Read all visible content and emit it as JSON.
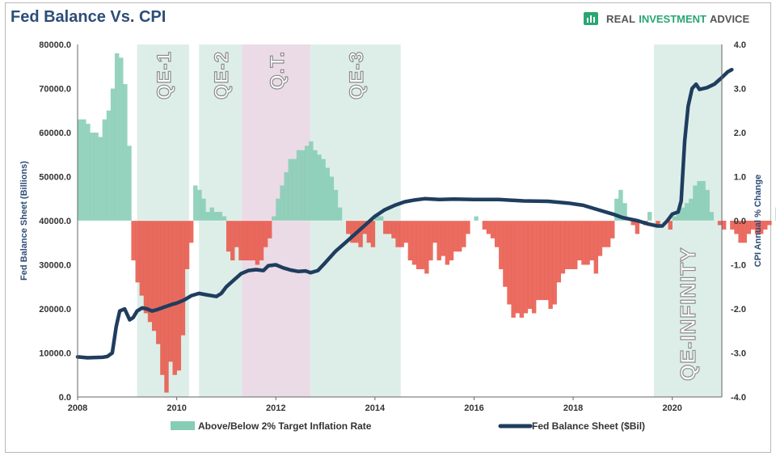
{
  "header": {
    "title": "Fed Balance Vs. CPI",
    "brand_part1": "REAL",
    "brand_part2": "INVESTMENT",
    "brand_part3": "ADVICE",
    "brand_icon": "bar-chart-icon"
  },
  "colors": {
    "title": "#2d4d78",
    "above": "#86cdb5",
    "below": "#e8584a",
    "line": "#1f3d5e",
    "qe_shade": "#d7ebe4",
    "qt_shade": "#e7d5e2",
    "axis_text": "#333333",
    "ylabel_text": "#2d4d78"
  },
  "chart_data": {
    "type": "bar+line",
    "title": "Fed Balance Vs. CPI",
    "x_ticks": [
      "2008",
      "2010",
      "2012",
      "2014",
      "2016",
      "2018",
      "2020"
    ],
    "xlim": [
      2008.0,
      2021.0
    ],
    "left_axis": {
      "label": "Fed Balance Sheet (Billions)",
      "ylim": [
        0,
        80000
      ],
      "ticks": [
        "0.0",
        "10000.0",
        "20000.0",
        "30000.0",
        "40000.0",
        "50000.0",
        "60000.0",
        "70000.0",
        "80000.0"
      ]
    },
    "right_axis": {
      "label": "CPI Annual % Change",
      "ylim": [
        -4.0,
        4.0
      ],
      "ticks": [
        "-4.0",
        "-3.0",
        "-2.0",
        "-1.0",
        "0.0",
        "1.0",
        "2.0",
        "3.0",
        "4.0"
      ]
    },
    "periods": [
      {
        "label": "QE-1",
        "start": 2009.2,
        "end": 2010.25,
        "kind": "qe"
      },
      {
        "label": "QE-2",
        "start": 2010.45,
        "end": 2011.32,
        "kind": "qe"
      },
      {
        "label": "Q.T.",
        "start": 2011.32,
        "end": 2012.7,
        "kind": "qt"
      },
      {
        "label": "QE-3",
        "start": 2012.7,
        "end": 2014.52,
        "kind": "qe"
      },
      {
        "label": "QE-INFINITY",
        "start": 2019.63,
        "end": 2021.0,
        "kind": "qe"
      }
    ],
    "bar_series": {
      "name": "Above/Below 2% Target Inflation Rate",
      "start": 2008.0,
      "step": 0.08333,
      "values": [
        2.3,
        2.3,
        2.2,
        2.0,
        2.0,
        1.9,
        2.3,
        2.5,
        3.0,
        3.8,
        3.7,
        3.1,
        1.7,
        -0.9,
        -1.4,
        -1.7,
        -2.1,
        -2.3,
        -2.5,
        -2.8,
        -3.5,
        -3.9,
        -3.2,
        -3.5,
        -3.4,
        -2.6,
        -1.1,
        -0.5,
        0.8,
        0.7,
        0.5,
        0.2,
        0.3,
        0.2,
        0.2,
        0.1,
        -0.7,
        -0.9,
        -0.6,
        -0.9,
        -0.9,
        -0.9,
        -0.9,
        -1.0,
        -0.9,
        -0.6,
        -0.4,
        0.1,
        0.5,
        0.8,
        1.1,
        1.4,
        1.4,
        1.6,
        1.6,
        1.7,
        1.8,
        1.6,
        1.5,
        1.4,
        1.2,
        1.0,
        0.7,
        0.3,
        0.0,
        -0.3,
        -0.5,
        -0.5,
        -0.6,
        -0.3,
        -0.5,
        -0.6,
        0.1,
        0.1,
        -0.3,
        -0.3,
        -0.4,
        -0.6,
        -0.6,
        -0.5,
        -0.9,
        -1.0,
        -1.1,
        -1.1,
        -1.2,
        -0.9,
        -0.5,
        -0.9,
        -0.8,
        -1.0,
        -0.9,
        -0.7,
        -0.7,
        -0.6,
        -0.3,
        0.0,
        0.1,
        0.0,
        -0.2,
        -0.3,
        -0.4,
        -0.6,
        -1.1,
        -1.5,
        -1.9,
        -2.2,
        -2.1,
        -2.2,
        -2.1,
        -2.0,
        -2.1,
        -1.8,
        -1.8,
        -1.8,
        -2.0,
        -1.9,
        -1.4,
        -1.2,
        -1.1,
        -1.1,
        -1.1,
        -0.9,
        -1.0,
        -1.0,
        -0.9,
        -1.2,
        -0.8,
        -0.6,
        -0.6,
        -0.4,
        0.5,
        0.7,
        0.4,
        0.0,
        -0.1,
        -0.3,
        0.0,
        -0.1,
        0.2,
        0.0,
        -0.1,
        0.0,
        0.0,
        -0.2,
        0.1,
        0.2,
        0.3,
        0.4,
        0.5,
        0.8,
        0.9,
        0.9,
        0.7,
        0.2,
        0.0,
        -0.1,
        -0.2,
        0.0,
        -0.2,
        -0.3,
        -0.5,
        -0.5,
        -0.3,
        -0.2,
        -0.3,
        -0.3,
        -0.2,
        -0.1,
        0.0,
        0.3,
        0.5,
        0.3,
        -0.6,
        -1.3,
        -1.8,
        -1.9,
        -1.6,
        -1.0,
        -0.8,
        -0.8,
        -0.6,
        -0.8,
        -0.9,
        -0.6,
        -0.4,
        -0.6,
        -0.6
      ]
    },
    "line_series": {
      "name": "Fed Balance Sheet ($Bil)",
      "points": [
        [
          2008.0,
          9100
        ],
        [
          2008.2,
          8900
        ],
        [
          2008.5,
          9000
        ],
        [
          2008.6,
          9200
        ],
        [
          2008.7,
          10000
        ],
        [
          2008.78,
          16000
        ],
        [
          2008.85,
          19500
        ],
        [
          2008.95,
          20000
        ],
        [
          2009.05,
          17500
        ],
        [
          2009.12,
          18000
        ],
        [
          2009.2,
          19500
        ],
        [
          2009.3,
          20200
        ],
        [
          2009.4,
          20000
        ],
        [
          2009.5,
          19500
        ],
        [
          2009.6,
          19800
        ],
        [
          2009.75,
          20400
        ],
        [
          2009.9,
          21000
        ],
        [
          2010.0,
          21300
        ],
        [
          2010.15,
          22000
        ],
        [
          2010.3,
          23000
        ],
        [
          2010.45,
          23500
        ],
        [
          2010.6,
          23200
        ],
        [
          2010.8,
          22800
        ],
        [
          2010.9,
          23500
        ],
        [
          2011.0,
          25000
        ],
        [
          2011.15,
          26500
        ],
        [
          2011.3,
          28000
        ],
        [
          2011.45,
          28700
        ],
        [
          2011.6,
          28900
        ],
        [
          2011.75,
          28700
        ],
        [
          2011.85,
          29800
        ],
        [
          2012.0,
          30000
        ],
        [
          2012.15,
          29300
        ],
        [
          2012.3,
          28800
        ],
        [
          2012.45,
          28500
        ],
        [
          2012.6,
          28600
        ],
        [
          2012.7,
          28200
        ],
        [
          2012.85,
          28700
        ],
        [
          2013.0,
          30500
        ],
        [
          2013.2,
          33000
        ],
        [
          2013.4,
          35000
        ],
        [
          2013.6,
          37000
        ],
        [
          2013.8,
          39000
        ],
        [
          2014.0,
          41000
        ],
        [
          2014.2,
          42500
        ],
        [
          2014.4,
          43500
        ],
        [
          2014.6,
          44300
        ],
        [
          2014.8,
          44700
        ],
        [
          2015.0,
          45000
        ],
        [
          2015.3,
          44800
        ],
        [
          2015.6,
          44900
        ],
        [
          2016.0,
          44800
        ],
        [
          2016.5,
          44800
        ],
        [
          2017.0,
          44500
        ],
        [
          2017.5,
          44400
        ],
        [
          2017.9,
          44000
        ],
        [
          2018.2,
          43500
        ],
        [
          2018.5,
          42500
        ],
        [
          2018.8,
          41500
        ],
        [
          2019.0,
          40700
        ],
        [
          2019.3,
          40000
        ],
        [
          2019.5,
          39300
        ],
        [
          2019.7,
          38800
        ],
        [
          2019.8,
          38800
        ],
        [
          2019.9,
          40000
        ],
        [
          2020.0,
          41500
        ],
        [
          2020.12,
          42000
        ],
        [
          2020.18,
          44500
        ],
        [
          2020.25,
          58000
        ],
        [
          2020.32,
          66000
        ],
        [
          2020.4,
          70000
        ],
        [
          2020.48,
          71000
        ],
        [
          2020.55,
          69800
        ],
        [
          2020.7,
          70200
        ],
        [
          2020.85,
          71000
        ],
        [
          2021.0,
          72500
        ],
        [
          2021.12,
          73800
        ],
        [
          2021.2,
          74300
        ]
      ]
    }
  }
}
